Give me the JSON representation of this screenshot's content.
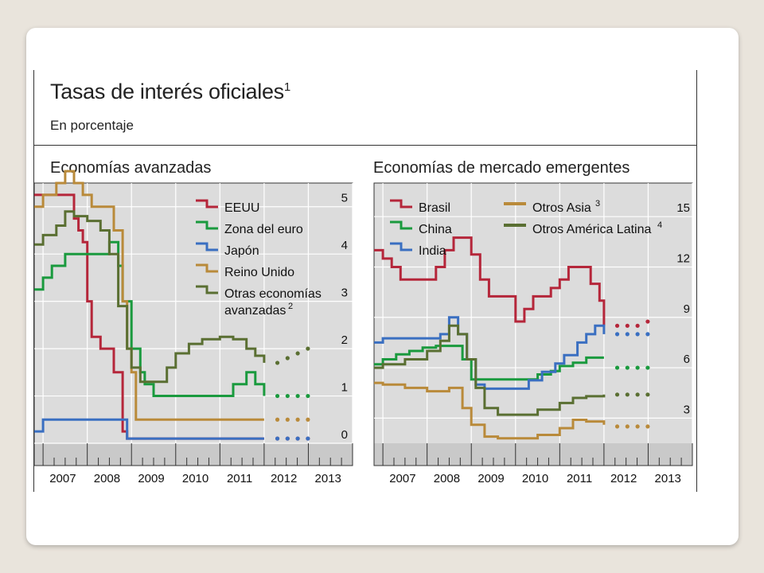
{
  "title": "Tasas de interés oficiales",
  "title_footnote": "1",
  "subtitle": "En porcentaje",
  "chart_data": [
    {
      "type": "line",
      "title": "Economías avanzadas",
      "x_ticks": [
        "2007",
        "2008",
        "2009",
        "2010",
        "2011",
        "2012",
        "2013"
      ],
      "xlim": [
        2006.8,
        2014.0
      ],
      "ylim": [
        0,
        5.5
      ],
      "y_ticks": [
        "0",
        "1",
        "2",
        "3",
        "4",
        "5"
      ],
      "y_tick_values": [
        0,
        1,
        2,
        3,
        4,
        5
      ],
      "grid": true,
      "legend_position": "top-right",
      "series": [
        {
          "name": "EEUU",
          "color": "#b5263a",
          "x": [
            2006.8,
            2007.6,
            2007.7,
            2007.8,
            2007.9,
            2008.0,
            2008.1,
            2008.3,
            2008.4,
            2008.6,
            2008.8,
            2008.9,
            2009.0,
            2012.0
          ],
          "y": [
            5.25,
            5.25,
            4.75,
            4.5,
            4.25,
            3.0,
            2.25,
            2.0,
            2.0,
            1.5,
            0.25,
            0.1,
            0.1,
            0.1
          ],
          "projection": [
            0.1,
            0.1,
            0.1,
            0.1
          ]
        },
        {
          "name": "Zona del euro",
          "color": "#1a9a3e",
          "x": [
            2006.8,
            2007.0,
            2007.2,
            2007.5,
            2008.0,
            2008.5,
            2008.7,
            2008.8,
            2009.0,
            2009.2,
            2009.3,
            2009.5,
            2011.0,
            2011.3,
            2011.6,
            2011.8,
            2012.0
          ],
          "y": [
            3.25,
            3.5,
            3.75,
            4.0,
            4.0,
            4.25,
            3.75,
            3.0,
            2.0,
            1.5,
            1.25,
            1.0,
            1.0,
            1.25,
            1.5,
            1.25,
            1.0
          ],
          "projection": [
            1.0,
            1.0,
            1.0,
            1.0
          ]
        },
        {
          "name": "Japón",
          "color": "#3a6fc1",
          "x": [
            2006.8,
            2007.0,
            2007.2,
            2008.5,
            2008.7,
            2008.9,
            2012.0
          ],
          "y": [
            0.25,
            0.5,
            0.5,
            0.5,
            0.5,
            0.1,
            0.1
          ],
          "projection": [
            0.1,
            0.1,
            0.1,
            0.1
          ]
        },
        {
          "name": "Reino Unido",
          "color": "#b98a3a",
          "x": [
            2006.8,
            2007.0,
            2007.3,
            2007.5,
            2007.7,
            2007.9,
            2008.1,
            2008.3,
            2008.6,
            2008.8,
            2008.9,
            2009.0,
            2009.1,
            2012.0
          ],
          "y": [
            5.0,
            5.25,
            5.5,
            5.75,
            5.5,
            5.25,
            5.0,
            5.0,
            4.5,
            3.0,
            2.0,
            1.5,
            0.5,
            0.5
          ],
          "projection": [
            0.5,
            0.5,
            0.5,
            0.5
          ]
        },
        {
          "name": "Otras economías avanzadas",
          "color": "#5a6f32",
          "x": [
            2006.8,
            2007.0,
            2007.3,
            2007.5,
            2007.7,
            2008.0,
            2008.3,
            2008.5,
            2008.7,
            2008.9,
            2009.0,
            2009.2,
            2009.5,
            2009.8,
            2010.0,
            2010.3,
            2010.6,
            2011.0,
            2011.3,
            2011.6,
            2011.8,
            2012.0
          ],
          "y": [
            4.2,
            4.4,
            4.6,
            4.9,
            4.8,
            4.7,
            4.5,
            4.0,
            2.9,
            2.0,
            1.6,
            1.3,
            1.3,
            1.6,
            1.9,
            2.1,
            2.2,
            2.25,
            2.2,
            2.0,
            1.85,
            1.7
          ],
          "projection": [
            1.7,
            1.8,
            1.9,
            2.0
          ]
        }
      ],
      "legend_labels": [
        "EEUU",
        "Zona del euro",
        "Japón",
        "Reino Unido",
        "Otras economías",
        "avanzadas"
      ],
      "legend_footnote": "2"
    },
    {
      "type": "line",
      "title": "Economías de mercado emergentes",
      "x_ticks": [
        "2007",
        "2008",
        "2009",
        "2010",
        "2011",
        "2012",
        "2013"
      ],
      "xlim": [
        2006.8,
        2014.0
      ],
      "ylim": [
        1.5,
        17.0
      ],
      "y_ticks": [
        "3",
        "6",
        "9",
        "12",
        "15"
      ],
      "y_tick_values": [
        3,
        6,
        9,
        12,
        15
      ],
      "grid": true,
      "legend_position": "top",
      "series": [
        {
          "name": "Brasil",
          "color": "#b5263a",
          "x": [
            2006.8,
            2007.0,
            2007.2,
            2007.4,
            2007.7,
            2008.0,
            2008.2,
            2008.4,
            2008.6,
            2008.8,
            2009.0,
            2009.2,
            2009.4,
            2010.0,
            2010.2,
            2010.4,
            2010.8,
            2011.0,
            2011.2,
            2011.5,
            2011.7,
            2011.9,
            2012.0
          ],
          "y": [
            13.0,
            12.5,
            12.0,
            11.25,
            11.25,
            11.25,
            12.0,
            13.0,
            13.75,
            13.75,
            12.75,
            11.25,
            10.25,
            8.75,
            9.5,
            10.25,
            10.75,
            11.25,
            12.0,
            12.0,
            11.0,
            10.0,
            8.5
          ],
          "projection": [
            8.5,
            8.5,
            8.5,
            8.75
          ]
        },
        {
          "name": "China",
          "color": "#1a9a3e",
          "x": [
            2006.8,
            2007.0,
            2007.3,
            2007.6,
            2007.9,
            2008.2,
            2008.6,
            2008.8,
            2009.0,
            2010.0,
            2010.5,
            2010.8,
            2011.0,
            2011.3,
            2011.6,
            2012.0
          ],
          "y": [
            6.2,
            6.5,
            6.8,
            7.0,
            7.2,
            7.3,
            7.3,
            6.5,
            5.3,
            5.3,
            5.6,
            5.8,
            6.1,
            6.3,
            6.6,
            6.6
          ],
          "projection": [
            6.0,
            6.0,
            6.0,
            6.0
          ]
        },
        {
          "name": "India",
          "color": "#3a6fc1",
          "x": [
            2006.8,
            2007.0,
            2007.3,
            2008.0,
            2008.3,
            2008.5,
            2008.7,
            2008.9,
            2009.1,
            2009.3,
            2010.0,
            2010.3,
            2010.6,
            2010.9,
            2011.1,
            2011.4,
            2011.6,
            2011.8,
            2012.0
          ],
          "y": [
            7.5,
            7.75,
            7.75,
            7.75,
            8.0,
            9.0,
            8.0,
            6.5,
            5.0,
            4.75,
            4.75,
            5.25,
            5.75,
            6.25,
            6.75,
            7.5,
            8.0,
            8.5,
            8.0
          ],
          "projection": [
            8.0,
            8.0,
            8.0,
            8.0
          ]
        },
        {
          "name": "Otros Asia",
          "color": "#b98a3a",
          "x": [
            2006.8,
            2007.0,
            2007.5,
            2008.0,
            2008.3,
            2008.5,
            2008.8,
            2009.0,
            2009.3,
            2009.6,
            2010.0,
            2010.5,
            2011.0,
            2011.3,
            2011.6,
            2012.0
          ],
          "y": [
            5.1,
            5.0,
            4.8,
            4.6,
            4.6,
            4.8,
            3.6,
            2.6,
            1.9,
            1.8,
            1.8,
            2.0,
            2.4,
            2.9,
            2.8,
            2.6
          ],
          "projection": [
            2.5,
            2.5,
            2.5,
            2.5
          ]
        },
        {
          "name": "Otros América Latina",
          "color": "#5a6f32",
          "x": [
            2006.8,
            2007.0,
            2007.5,
            2008.0,
            2008.3,
            2008.5,
            2008.7,
            2008.9,
            2009.1,
            2009.3,
            2009.6,
            2010.0,
            2010.5,
            2011.0,
            2011.3,
            2011.6,
            2012.0
          ],
          "y": [
            6.0,
            6.2,
            6.5,
            7.0,
            7.6,
            8.5,
            8.0,
            6.5,
            4.8,
            3.6,
            3.2,
            3.2,
            3.5,
            3.9,
            4.2,
            4.3,
            4.4
          ],
          "projection": [
            4.4,
            4.4,
            4.4,
            4.4
          ]
        }
      ],
      "legend_labels": [
        "Brasil",
        "China",
        "India",
        "Otros Asia",
        "Otros América Latina"
      ],
      "legend_footnotes": {
        "Otros Asia": "3",
        "Otros América Latina": "4"
      }
    }
  ]
}
